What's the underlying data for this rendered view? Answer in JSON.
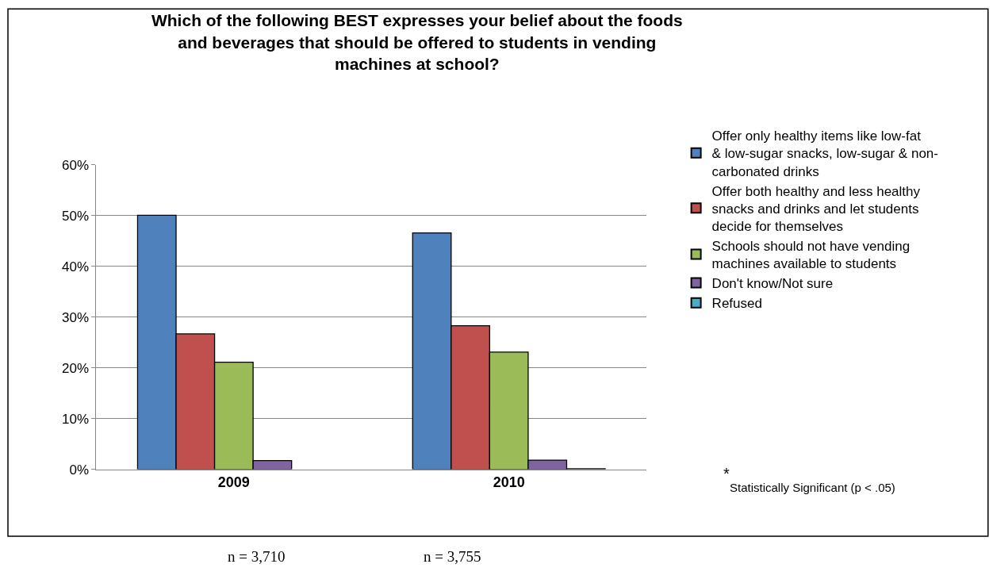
{
  "chart_data": {
    "type": "bar",
    "title": "Which of the following BEST expresses your belief about the foods and beverages that should be offered to students in vending machines at school?",
    "categories": [
      "2009",
      "2010"
    ],
    "series": [
      {
        "name": "Offer only healthy items like low-fat & low-sugar snacks, low-sugar & non-carbonated drinks",
        "color": "#4f81bd",
        "values": [
          50.1,
          46.6
        ]
      },
      {
        "name": "Offer both healthy and less healthy snacks and drinks and let students decide for themselves",
        "color": "#c0504d",
        "values": [
          26.7,
          28.3
        ]
      },
      {
        "name": "Schools should not have vending machines available to students",
        "color": "#9bbb59",
        "values": [
          21.1,
          23.1
        ]
      },
      {
        "name": "Don't know/Not sure",
        "color": "#8064a2",
        "values": [
          1.7,
          1.8
        ]
      },
      {
        "name": "Refused",
        "color": "#4bacc6",
        "values": [
          null,
          0.1
        ]
      }
    ],
    "ylim": [
      0,
      60
    ],
    "yticks": [
      {
        "value": 0,
        "label": "0%"
      },
      {
        "value": 10,
        "label": "10%"
      },
      {
        "value": 20,
        "label": "20%"
      },
      {
        "value": 30,
        "label": "30%"
      },
      {
        "value": 40,
        "label": "40%"
      },
      {
        "value": 50,
        "label": "50%"
      },
      {
        "value": 60,
        "label": "60%"
      }
    ],
    "grid": "y",
    "legend": "right",
    "annotations": [
      "*",
      "Statistically Significant (p < .05)",
      "n = 3,710",
      "n = 3,755"
    ]
  }
}
